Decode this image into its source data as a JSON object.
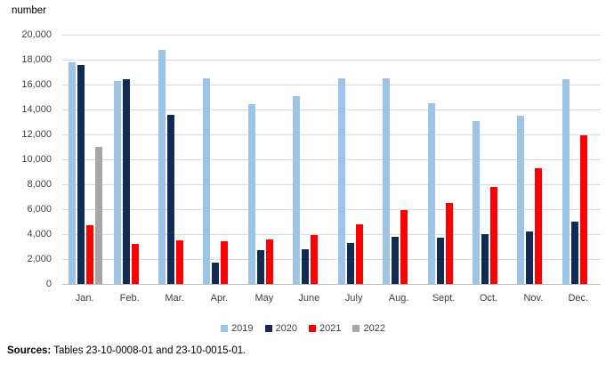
{
  "chart": {
    "axis_title": "number"
  },
  "chart_data": {
    "type": "bar",
    "title": "",
    "xlabel": "",
    "ylabel": "number",
    "ylim": [
      0,
      20000
    ],
    "ytick_step": 2000,
    "y_tick_labels": [
      "0",
      "2,000",
      "4,000",
      "6,000",
      "8,000",
      "10,000",
      "12,000",
      "14,000",
      "16,000",
      "18,000",
      "20,000"
    ],
    "grid": "horizontal",
    "legend_position": "bottom",
    "categories": [
      "Jan.",
      "Feb.",
      "Mar.",
      "Apr.",
      "May",
      "June",
      "July",
      "Aug.",
      "Sept.",
      "Oct.",
      "Nov.",
      "Dec."
    ],
    "series": [
      {
        "name": "2019",
        "color": "#9DC3E6",
        "values": [
          17800,
          16300,
          18800,
          16500,
          14400,
          15100,
          16500,
          16500,
          14500,
          13100,
          13500,
          16400
        ]
      },
      {
        "name": "2020",
        "color": "#102B54",
        "values": [
          17600,
          16400,
          13600,
          1700,
          2700,
          2800,
          3300,
          3800,
          3700,
          4000,
          4200,
          5000
        ]
      },
      {
        "name": "2021",
        "color": "#FF0000",
        "values": [
          4700,
          3200,
          3500,
          3400,
          3600,
          3900,
          4800,
          5900,
          6500,
          7800,
          9300,
          11900
        ]
      },
      {
        "name": "2022",
        "color": "#A6A6A6",
        "values": [
          11000,
          null,
          null,
          null,
          null,
          null,
          null,
          null,
          null,
          null,
          null,
          null
        ]
      }
    ]
  },
  "footer": {
    "sources_label": "Sources:",
    "sources_text": " Tables 23-10-0008-01 and 23-10-0015-01."
  }
}
